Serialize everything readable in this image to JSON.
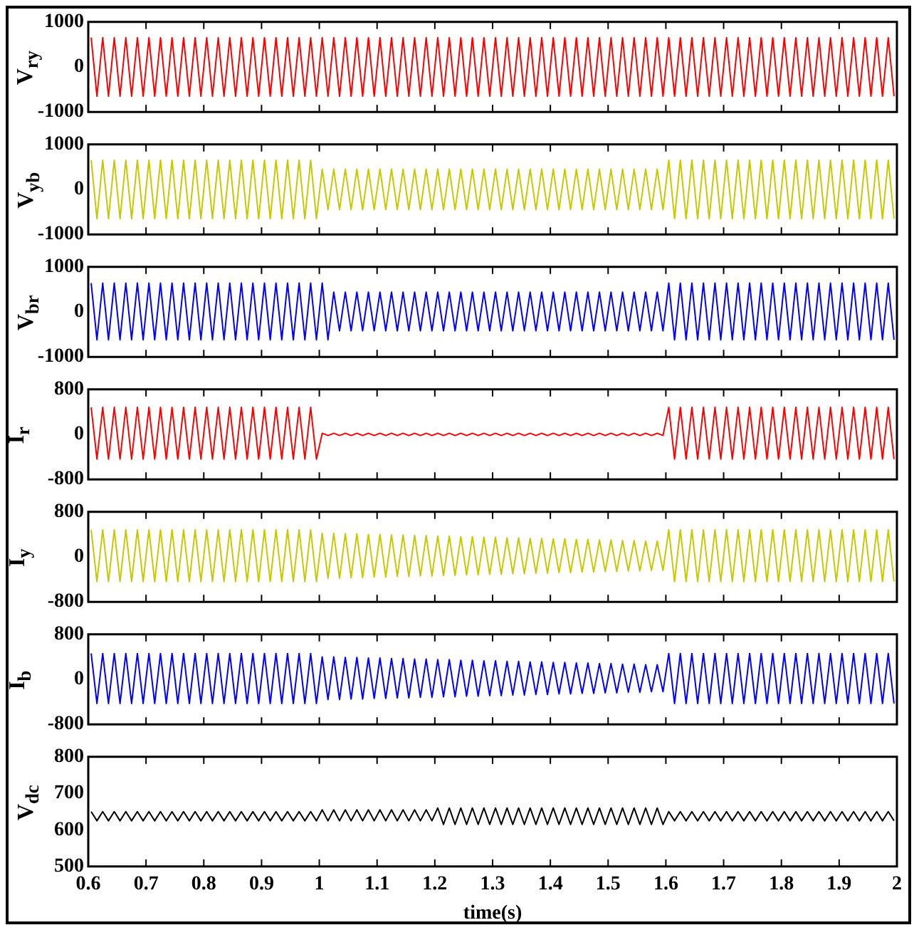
{
  "chart_data": [
    {
      "type": "line",
      "ylabel": "V$_{ry}$",
      "xlim": [
        0.6,
        2
      ],
      "ylim": [
        -1000,
        1000
      ],
      "yticks": [
        -1000,
        0,
        1000
      ],
      "xticks": [
        0.6,
        0.7,
        0.8,
        0.9,
        1,
        1.1,
        1.2,
        1.3,
        1.4,
        1.5,
        1.6,
        1.7,
        1.8,
        1.9,
        2
      ],
      "tick_labels": "y",
      "grid": false,
      "x": [
        0.605,
        0.615,
        0.625,
        0.635,
        0.645,
        0.655,
        0.665,
        0.675,
        0.685,
        0.695,
        0.705,
        0.715,
        0.725,
        0.735,
        0.745,
        0.755,
        0.765,
        0.775,
        0.785,
        0.795,
        0.805,
        0.815,
        0.825,
        0.835,
        0.845,
        0.855,
        0.865,
        0.875,
        0.885,
        0.895,
        0.905,
        0.915,
        0.925,
        0.935,
        0.945,
        0.955,
        0.965,
        0.975,
        0.985,
        0.995,
        1.005,
        1.015,
        1.025,
        1.035,
        1.045,
        1.055,
        1.065,
        1.075,
        1.085,
        1.095,
        1.105,
        1.115,
        1.125,
        1.135,
        1.145,
        1.155,
        1.165,
        1.175,
        1.185,
        1.195,
        1.205,
        1.215,
        1.225,
        1.235,
        1.245,
        1.255,
        1.265,
        1.275,
        1.285,
        1.295,
        1.305,
        1.315,
        1.325,
        1.335,
        1.345,
        1.355,
        1.365,
        1.375,
        1.385,
        1.395,
        1.405,
        1.415,
        1.425,
        1.435,
        1.445,
        1.455,
        1.465,
        1.475,
        1.485,
        1.495,
        1.505,
        1.515,
        1.525,
        1.535,
        1.545,
        1.555,
        1.565,
        1.575,
        1.585,
        1.595,
        1.605,
        1.615,
        1.625,
        1.635,
        1.645,
        1.655,
        1.665,
        1.675,
        1.685,
        1.695,
        1.705,
        1.715,
        1.725,
        1.735,
        1.745,
        1.755,
        1.765,
        1.775,
        1.785,
        1.795,
        1.805,
        1.815,
        1.825,
        1.835,
        1.845,
        1.855,
        1.865,
        1.875,
        1.885,
        1.895,
        1.905,
        1.915,
        1.925,
        1.935,
        1.945,
        1.955,
        1.965,
        1.975,
        1.985,
        1.995
      ],
      "series": [
        {
          "color": "#ff0000",
          "values": [
            650,
            -650,
            650,
            -650,
            650,
            -650,
            650,
            -650,
            650,
            -650,
            650,
            -650,
            650,
            -650,
            650,
            -650,
            650,
            -650,
            650,
            -650,
            650,
            -650,
            650,
            -650,
            650,
            -650,
            650,
            -650,
            650,
            -650,
            650,
            -650,
            650,
            -650,
            650,
            -650,
            650,
            -650,
            650,
            -650,
            650,
            -650,
            650,
            -650,
            650,
            -650,
            650,
            -650,
            650,
            -650,
            650,
            -650,
            650,
            -650,
            650,
            -650,
            650,
            -650,
            650,
            -650,
            650,
            -650,
            650,
            -650,
            650,
            -650,
            650,
            -650,
            650,
            -650,
            650,
            -650,
            650,
            -650,
            650,
            -650,
            650,
            -650,
            650,
            -650,
            650,
            -650,
            650,
            -650,
            650,
            -650,
            650,
            -650,
            650,
            -650,
            650,
            -650,
            650,
            -650,
            650,
            -650,
            650,
            -650,
            650,
            -650,
            650,
            -650,
            650,
            -650,
            650,
            -650,
            650,
            -650,
            650,
            -650,
            650,
            -650,
            650,
            -650,
            650,
            -650,
            650,
            -650,
            650,
            -650,
            650,
            -650,
            650,
            -650,
            650,
            -650,
            650,
            -650,
            650,
            -650,
            650,
            -650,
            650,
            -650,
            650,
            -650,
            650,
            -650,
            650,
            -650
          ]
        }
      ]
    },
    {
      "type": "line",
      "ylabel": "V$_{yb}$",
      "xlim": [
        0.6,
        2
      ],
      "ylim": [
        -1000,
        1000
      ],
      "yticks": [
        -1000,
        0,
        1000
      ],
      "xticks": [
        0.6,
        0.7,
        0.8,
        0.9,
        1,
        1.1,
        1.2,
        1.3,
        1.4,
        1.5,
        1.6,
        1.7,
        1.8,
        1.9,
        2
      ],
      "tick_labels": "y",
      "grid": false,
      "x": [
        0.605,
        0.615,
        0.625,
        0.635,
        0.645,
        0.655,
        0.665,
        0.675,
        0.685,
        0.695,
        0.705,
        0.715,
        0.725,
        0.735,
        0.745,
        0.755,
        0.765,
        0.775,
        0.785,
        0.795,
        0.805,
        0.815,
        0.825,
        0.835,
        0.845,
        0.855,
        0.865,
        0.875,
        0.885,
        0.895,
        0.905,
        0.915,
        0.925,
        0.935,
        0.945,
        0.955,
        0.965,
        0.975,
        0.985,
        0.995,
        1.005,
        1.015,
        1.025,
        1.035,
        1.045,
        1.055,
        1.065,
        1.075,
        1.085,
        1.095,
        1.105,
        1.115,
        1.125,
        1.135,
        1.145,
        1.155,
        1.165,
        1.175,
        1.185,
        1.195,
        1.205,
        1.215,
        1.225,
        1.235,
        1.245,
        1.255,
        1.265,
        1.275,
        1.285,
        1.295,
        1.305,
        1.315,
        1.325,
        1.335,
        1.345,
        1.355,
        1.365,
        1.375,
        1.385,
        1.395,
        1.405,
        1.415,
        1.425,
        1.435,
        1.445,
        1.455,
        1.465,
        1.475,
        1.485,
        1.495,
        1.505,
        1.515,
        1.525,
        1.535,
        1.545,
        1.555,
        1.565,
        1.575,
        1.585,
        1.595,
        1.605,
        1.615,
        1.625,
        1.635,
        1.645,
        1.655,
        1.665,
        1.675,
        1.685,
        1.695,
        1.705,
        1.715,
        1.725,
        1.735,
        1.745,
        1.755,
        1.765,
        1.775,
        1.785,
        1.795,
        1.805,
        1.815,
        1.825,
        1.835,
        1.845,
        1.855,
        1.865,
        1.875,
        1.885,
        1.895,
        1.905,
        1.915,
        1.925,
        1.935,
        1.945,
        1.955,
        1.965,
        1.975,
        1.985,
        1.995
      ],
      "series": [
        {
          "color": "#c8c800",
          "values": [
            650,
            -650,
            650,
            -650,
            650,
            -650,
            650,
            -650,
            650,
            -650,
            650,
            -650,
            650,
            -650,
            650,
            -650,
            650,
            -650,
            650,
            -650,
            650,
            -650,
            650,
            -650,
            650,
            -650,
            650,
            -650,
            650,
            -650,
            650,
            -650,
            650,
            -650,
            650,
            -650,
            650,
            -650,
            650,
            -650,
            450,
            -450,
            450,
            -450,
            450,
            -450,
            450,
            -450,
            450,
            -450,
            450,
            -450,
            450,
            -450,
            450,
            -450,
            450,
            -450,
            450,
            -450,
            450,
            -450,
            450,
            -450,
            450,
            -450,
            450,
            -450,
            450,
            -450,
            450,
            -450,
            450,
            -450,
            450,
            -450,
            450,
            -450,
            450,
            -450,
            450,
            -450,
            450,
            -450,
            450,
            -450,
            450,
            -450,
            450,
            -450,
            450,
            -450,
            450,
            -450,
            450,
            -450,
            450,
            -450,
            450,
            -450,
            650,
            -650,
            650,
            -650,
            650,
            -650,
            650,
            -650,
            650,
            -650,
            650,
            -650,
            650,
            -650,
            650,
            -650,
            650,
            -650,
            650,
            -650,
            650,
            -650,
            650,
            -650,
            650,
            -650,
            650,
            -650,
            650,
            -650,
            650,
            -650,
            650,
            -650,
            650,
            -650,
            650,
            -650,
            650,
            -650
          ]
        }
      ]
    },
    {
      "type": "line",
      "ylabel": "V$_{br}$",
      "xlim": [
        0.6,
        2
      ],
      "ylim": [
        -1000,
        1000
      ],
      "yticks": [
        -1000,
        0,
        1000
      ],
      "xticks": [
        0.6,
        0.7,
        0.8,
        0.9,
        1,
        1.1,
        1.2,
        1.3,
        1.4,
        1.5,
        1.6,
        1.7,
        1.8,
        1.9,
        2
      ],
      "tick_labels": "y",
      "grid": false,
      "x": [
        0.605,
        0.615,
        0.625,
        0.635,
        0.645,
        0.655,
        0.665,
        0.675,
        0.685,
        0.695,
        0.705,
        0.715,
        0.725,
        0.735,
        0.745,
        0.755,
        0.765,
        0.775,
        0.785,
        0.795,
        0.805,
        0.815,
        0.825,
        0.835,
        0.845,
        0.855,
        0.865,
        0.875,
        0.885,
        0.895,
        0.905,
        0.915,
        0.925,
        0.935,
        0.945,
        0.955,
        0.965,
        0.975,
        0.985,
        0.995,
        1.005,
        1.015,
        1.025,
        1.035,
        1.045,
        1.055,
        1.065,
        1.075,
        1.085,
        1.095,
        1.105,
        1.115,
        1.125,
        1.135,
        1.145,
        1.155,
        1.165,
        1.175,
        1.185,
        1.195,
        1.205,
        1.215,
        1.225,
        1.235,
        1.245,
        1.255,
        1.265,
        1.275,
        1.285,
        1.295,
        1.305,
        1.315,
        1.325,
        1.335,
        1.345,
        1.355,
        1.365,
        1.375,
        1.385,
        1.395,
        1.405,
        1.415,
        1.425,
        1.435,
        1.445,
        1.455,
        1.465,
        1.475,
        1.485,
        1.495,
        1.505,
        1.515,
        1.525,
        1.535,
        1.545,
        1.555,
        1.565,
        1.575,
        1.585,
        1.595,
        1.605,
        1.615,
        1.625,
        1.635,
        1.645,
        1.655,
        1.665,
        1.675,
        1.685,
        1.695,
        1.705,
        1.715,
        1.725,
        1.735,
        1.745,
        1.755,
        1.765,
        1.775,
        1.785,
        1.795,
        1.805,
        1.815,
        1.825,
        1.835,
        1.845,
        1.855,
        1.865,
        1.875,
        1.885,
        1.895,
        1.905,
        1.915,
        1.925,
        1.935,
        1.945,
        1.955,
        1.965,
        1.975,
        1.985,
        1.995
      ],
      "series": [
        {
          "color": "#0000ff",
          "values": [
            640,
            -620,
            640,
            -620,
            640,
            -620,
            640,
            -620,
            640,
            -620,
            640,
            -620,
            640,
            -620,
            640,
            -620,
            640,
            -620,
            640,
            -620,
            640,
            -620,
            640,
            -620,
            640,
            -620,
            640,
            -620,
            640,
            -620,
            640,
            -620,
            640,
            -620,
            640,
            -620,
            640,
            -620,
            640,
            -620,
            640,
            -620,
            440,
            -420,
            440,
            -420,
            440,
            -420,
            440,
            -420,
            440,
            -420,
            440,
            -420,
            440,
            -420,
            440,
            -420,
            440,
            -420,
            440,
            -420,
            440,
            -420,
            440,
            -420,
            440,
            -420,
            440,
            -420,
            440,
            -420,
            440,
            -420,
            440,
            -420,
            440,
            -420,
            440,
            -420,
            440,
            -420,
            440,
            -420,
            440,
            -420,
            440,
            -420,
            440,
            -420,
            440,
            -420,
            440,
            -420,
            440,
            -420,
            440,
            -420,
            440,
            -420,
            640,
            -620,
            640,
            -620,
            640,
            -620,
            640,
            -620,
            640,
            -620,
            640,
            -620,
            640,
            -620,
            640,
            -620,
            640,
            -620,
            640,
            -620,
            640,
            -620,
            640,
            -620,
            640,
            -620,
            640,
            -620,
            640,
            -620,
            640,
            -620,
            640,
            -620,
            640,
            -620,
            640,
            -620,
            640,
            -620
          ]
        }
      ]
    },
    {
      "type": "line",
      "ylabel": "I$_{r}$",
      "xlim": [
        0.6,
        2
      ],
      "ylim": [
        -800,
        800
      ],
      "yticks": [
        -800,
        0,
        800
      ],
      "xticks": [
        0.6,
        0.7,
        0.8,
        0.9,
        1,
        1.1,
        1.2,
        1.3,
        1.4,
        1.5,
        1.6,
        1.7,
        1.8,
        1.9,
        2
      ],
      "tick_labels": "y",
      "grid": false,
      "x": [
        0.605,
        0.615,
        0.625,
        0.635,
        0.645,
        0.655,
        0.665,
        0.675,
        0.685,
        0.695,
        0.705,
        0.715,
        0.725,
        0.735,
        0.745,
        0.755,
        0.765,
        0.775,
        0.785,
        0.795,
        0.805,
        0.815,
        0.825,
        0.835,
        0.845,
        0.855,
        0.865,
        0.875,
        0.885,
        0.895,
        0.905,
        0.915,
        0.925,
        0.935,
        0.945,
        0.955,
        0.965,
        0.975,
        0.985,
        0.995,
        1.005,
        1.015,
        1.025,
        1.035,
        1.045,
        1.055,
        1.065,
        1.075,
        1.085,
        1.095,
        1.105,
        1.115,
        1.125,
        1.135,
        1.145,
        1.155,
        1.165,
        1.175,
        1.185,
        1.195,
        1.205,
        1.215,
        1.225,
        1.235,
        1.245,
        1.255,
        1.265,
        1.275,
        1.285,
        1.295,
        1.305,
        1.315,
        1.325,
        1.335,
        1.345,
        1.355,
        1.365,
        1.375,
        1.385,
        1.395,
        1.405,
        1.415,
        1.425,
        1.435,
        1.445,
        1.455,
        1.465,
        1.475,
        1.485,
        1.495,
        1.505,
        1.515,
        1.525,
        1.535,
        1.545,
        1.555,
        1.565,
        1.575,
        1.585,
        1.595,
        1.605,
        1.615,
        1.625,
        1.635,
        1.645,
        1.655,
        1.665,
        1.675,
        1.685,
        1.695,
        1.705,
        1.715,
        1.725,
        1.735,
        1.745,
        1.755,
        1.765,
        1.775,
        1.785,
        1.795,
        1.805,
        1.815,
        1.825,
        1.835,
        1.845,
        1.855,
        1.865,
        1.875,
        1.885,
        1.895,
        1.905,
        1.915,
        1.925,
        1.935,
        1.945,
        1.955,
        1.965,
        1.975,
        1.985,
        1.995
      ],
      "series": [
        {
          "color": "#ff0000",
          "values": [
            480,
            -440,
            480,
            -440,
            480,
            -440,
            480,
            -440,
            480,
            -440,
            480,
            -440,
            480,
            -440,
            480,
            -440,
            480,
            -440,
            480,
            -440,
            480,
            -440,
            480,
            -440,
            480,
            -440,
            480,
            -440,
            480,
            -440,
            480,
            -440,
            480,
            -440,
            480,
            -440,
            480,
            -440,
            480,
            -440,
            20,
            -20,
            20,
            -20,
            20,
            -20,
            20,
            -20,
            20,
            -20,
            20,
            -20,
            20,
            -20,
            20,
            -20,
            20,
            -20,
            20,
            -20,
            20,
            -20,
            20,
            -20,
            20,
            -20,
            20,
            -20,
            20,
            -20,
            20,
            -20,
            20,
            -20,
            20,
            -20,
            20,
            -20,
            20,
            -20,
            20,
            -20,
            20,
            -20,
            20,
            -20,
            20,
            -20,
            20,
            -20,
            20,
            -20,
            20,
            -20,
            20,
            -20,
            20,
            -20,
            20,
            -20,
            480,
            -440,
            480,
            -440,
            480,
            -440,
            480,
            -440,
            480,
            -440,
            480,
            -440,
            480,
            -440,
            480,
            -440,
            480,
            -440,
            480,
            -440,
            480,
            -440,
            480,
            -440,
            480,
            -440,
            480,
            -440,
            480,
            -440,
            480,
            -440,
            480,
            -440,
            480,
            -440,
            480,
            -440,
            480,
            -440
          ]
        }
      ]
    },
    {
      "type": "line",
      "ylabel": "I$_{y}$",
      "xlim": [
        0.6,
        2
      ],
      "ylim": [
        -800,
        800
      ],
      "yticks": [
        -800,
        0,
        800
      ],
      "xticks": [
        0.6,
        0.7,
        0.8,
        0.9,
        1,
        1.1,
        1.2,
        1.3,
        1.4,
        1.5,
        1.6,
        1.7,
        1.8,
        1.9,
        2
      ],
      "tick_labels": "y",
      "grid": false,
      "x": [
        0.605,
        0.615,
        0.625,
        0.635,
        0.645,
        0.655,
        0.665,
        0.675,
        0.685,
        0.695,
        0.705,
        0.715,
        0.725,
        0.735,
        0.745,
        0.755,
        0.765,
        0.775,
        0.785,
        0.795,
        0.805,
        0.815,
        0.825,
        0.835,
        0.845,
        0.855,
        0.865,
        0.875,
        0.885,
        0.895,
        0.905,
        0.915,
        0.925,
        0.935,
        0.945,
        0.955,
        0.965,
        0.975,
        0.985,
        0.995,
        1.005,
        1.015,
        1.025,
        1.035,
        1.045,
        1.055,
        1.065,
        1.075,
        1.085,
        1.095,
        1.105,
        1.115,
        1.125,
        1.135,
        1.145,
        1.155,
        1.165,
        1.175,
        1.185,
        1.195,
        1.205,
        1.215,
        1.225,
        1.235,
        1.245,
        1.255,
        1.265,
        1.275,
        1.285,
        1.295,
        1.305,
        1.315,
        1.325,
        1.335,
        1.345,
        1.355,
        1.365,
        1.375,
        1.385,
        1.395,
        1.405,
        1.415,
        1.425,
        1.435,
        1.445,
        1.455,
        1.465,
        1.475,
        1.485,
        1.495,
        1.505,
        1.515,
        1.525,
        1.535,
        1.545,
        1.555,
        1.565,
        1.575,
        1.585,
        1.595,
        1.605,
        1.615,
        1.625,
        1.635,
        1.645,
        1.655,
        1.665,
        1.675,
        1.685,
        1.695,
        1.705,
        1.715,
        1.725,
        1.735,
        1.745,
        1.755,
        1.765,
        1.775,
        1.785,
        1.795,
        1.805,
        1.815,
        1.825,
        1.835,
        1.845,
        1.855,
        1.865,
        1.875,
        1.885,
        1.895,
        1.905,
        1.915,
        1.925,
        1.935,
        1.945,
        1.955,
        1.965,
        1.975,
        1.985,
        1.995
      ],
      "series": [
        {
          "color": "#c8c800",
          "values": [
            480,
            -440,
            480,
            -440,
            480,
            -440,
            480,
            -440,
            480,
            -440,
            480,
            -440,
            480,
            -440,
            480,
            -440,
            480,
            -440,
            480,
            -440,
            480,
            -440,
            480,
            -440,
            480,
            -440,
            480,
            -440,
            480,
            -440,
            480,
            -440,
            480,
            -440,
            480,
            -440,
            480,
            -440,
            480,
            -440,
            420,
            -380,
            420,
            -380,
            410,
            -370,
            410,
            -370,
            400,
            -360,
            400,
            -360,
            390,
            -350,
            390,
            -350,
            380,
            -340,
            380,
            -340,
            370,
            -330,
            370,
            -330,
            360,
            -320,
            360,
            -320,
            350,
            -310,
            350,
            -310,
            340,
            -300,
            340,
            -300,
            330,
            -290,
            330,
            -290,
            320,
            -280,
            320,
            -280,
            310,
            -270,
            310,
            -270,
            300,
            -260,
            300,
            -260,
            290,
            -250,
            290,
            -250,
            280,
            -240,
            280,
            -240,
            480,
            -440,
            480,
            -440,
            480,
            -440,
            480,
            -440,
            480,
            -440,
            480,
            -440,
            480,
            -440,
            480,
            -440,
            480,
            -440,
            480,
            -440,
            480,
            -440,
            480,
            -440,
            480,
            -440,
            480,
            -440,
            480,
            -440,
            480,
            -440,
            480,
            -440,
            480,
            -440,
            480,
            -440,
            480,
            -440
          ]
        }
      ]
    },
    {
      "type": "line",
      "ylabel": "I$_{b}$",
      "xlim": [
        0.6,
        2
      ],
      "ylim": [
        -800,
        800
      ],
      "yticks": [
        -800,
        0,
        800
      ],
      "xticks": [
        0.6,
        0.7,
        0.8,
        0.9,
        1,
        1.1,
        1.2,
        1.3,
        1.4,
        1.5,
        1.6,
        1.7,
        1.8,
        1.9,
        2
      ],
      "tick_labels": "y",
      "grid": false,
      "x": [
        0.605,
        0.615,
        0.625,
        0.635,
        0.645,
        0.655,
        0.665,
        0.675,
        0.685,
        0.695,
        0.705,
        0.715,
        0.725,
        0.735,
        0.745,
        0.755,
        0.765,
        0.775,
        0.785,
        0.795,
        0.805,
        0.815,
        0.825,
        0.835,
        0.845,
        0.855,
        0.865,
        0.875,
        0.885,
        0.895,
        0.905,
        0.915,
        0.925,
        0.935,
        0.945,
        0.955,
        0.965,
        0.975,
        0.985,
        0.995,
        1.005,
        1.015,
        1.025,
        1.035,
        1.045,
        1.055,
        1.065,
        1.075,
        1.085,
        1.095,
        1.105,
        1.115,
        1.125,
        1.135,
        1.145,
        1.155,
        1.165,
        1.175,
        1.185,
        1.195,
        1.205,
        1.215,
        1.225,
        1.235,
        1.245,
        1.255,
        1.265,
        1.275,
        1.285,
        1.295,
        1.305,
        1.315,
        1.325,
        1.335,
        1.345,
        1.355,
        1.365,
        1.375,
        1.385,
        1.395,
        1.405,
        1.415,
        1.425,
        1.435,
        1.445,
        1.455,
        1.465,
        1.475,
        1.485,
        1.495,
        1.505,
        1.515,
        1.525,
        1.535,
        1.545,
        1.555,
        1.565,
        1.575,
        1.585,
        1.595,
        1.605,
        1.615,
        1.625,
        1.635,
        1.645,
        1.655,
        1.665,
        1.675,
        1.685,
        1.695,
        1.705,
        1.715,
        1.725,
        1.735,
        1.745,
        1.755,
        1.765,
        1.775,
        1.785,
        1.795,
        1.805,
        1.815,
        1.825,
        1.835,
        1.845,
        1.855,
        1.865,
        1.875,
        1.885,
        1.895,
        1.905,
        1.915,
        1.925,
        1.935,
        1.945,
        1.955,
        1.965,
        1.975,
        1.985,
        1.995
      ],
      "series": [
        {
          "color": "#0000ff",
          "values": [
            460,
            -430,
            460,
            -430,
            460,
            -430,
            460,
            -430,
            460,
            -430,
            460,
            -430,
            460,
            -430,
            460,
            -430,
            460,
            -430,
            460,
            -430,
            460,
            -430,
            460,
            -430,
            460,
            -430,
            460,
            -430,
            460,
            -430,
            460,
            -430,
            460,
            -430,
            460,
            -430,
            460,
            -430,
            460,
            -430,
            400,
            -360,
            400,
            -360,
            390,
            -350,
            390,
            -350,
            380,
            -340,
            380,
            -340,
            370,
            -330,
            370,
            -330,
            360,
            -320,
            360,
            -320,
            350,
            -310,
            350,
            -310,
            340,
            -300,
            340,
            -300,
            330,
            -290,
            330,
            -290,
            320,
            -280,
            320,
            -280,
            310,
            -270,
            310,
            -270,
            300,
            -260,
            300,
            -260,
            290,
            -250,
            290,
            -250,
            280,
            -240,
            280,
            -240,
            270,
            -230,
            270,
            -230,
            260,
            -220,
            260,
            -220,
            460,
            -430,
            460,
            -430,
            460,
            -430,
            460,
            -430,
            460,
            -430,
            460,
            -430,
            460,
            -430,
            460,
            -430,
            460,
            -430,
            460,
            -430,
            460,
            -430,
            460,
            -430,
            460,
            -430,
            460,
            -430,
            460,
            -430,
            460,
            -430,
            460,
            -430,
            460,
            -430,
            460,
            -430,
            460,
            -430
          ]
        }
      ]
    },
    {
      "type": "line",
      "ylabel": "V$_{dc}$",
      "xlabel": "time(s)",
      "xlim": [
        0.6,
        2
      ],
      "ylim": [
        500,
        800
      ],
      "yticks": [
        500,
        600,
        700,
        800
      ],
      "xticks": [
        0.6,
        0.7,
        0.8,
        0.9,
        1,
        1.1,
        1.2,
        1.3,
        1.4,
        1.5,
        1.6,
        1.7,
        1.8,
        1.9,
        2
      ],
      "grid": false,
      "x": [
        0.605,
        0.615,
        0.625,
        0.635,
        0.645,
        0.655,
        0.665,
        0.675,
        0.685,
        0.695,
        0.705,
        0.715,
        0.725,
        0.735,
        0.745,
        0.755,
        0.765,
        0.775,
        0.785,
        0.795,
        0.805,
        0.815,
        0.825,
        0.835,
        0.845,
        0.855,
        0.865,
        0.875,
        0.885,
        0.895,
        0.905,
        0.915,
        0.925,
        0.935,
        0.945,
        0.955,
        0.965,
        0.975,
        0.985,
        0.995,
        1.005,
        1.015,
        1.025,
        1.035,
        1.045,
        1.055,
        1.065,
        1.075,
        1.085,
        1.095,
        1.105,
        1.115,
        1.125,
        1.135,
        1.145,
        1.155,
        1.165,
        1.175,
        1.185,
        1.195,
        1.205,
        1.215,
        1.225,
        1.235,
        1.245,
        1.255,
        1.265,
        1.275,
        1.285,
        1.295,
        1.305,
        1.315,
        1.325,
        1.335,
        1.345,
        1.355,
        1.365,
        1.375,
        1.385,
        1.395,
        1.405,
        1.415,
        1.425,
        1.435,
        1.445,
        1.455,
        1.465,
        1.475,
        1.485,
        1.495,
        1.505,
        1.515,
        1.525,
        1.535,
        1.545,
        1.555,
        1.565,
        1.575,
        1.585,
        1.595,
        1.605,
        1.615,
        1.625,
        1.635,
        1.645,
        1.655,
        1.665,
        1.675,
        1.685,
        1.695,
        1.705,
        1.715,
        1.725,
        1.735,
        1.745,
        1.755,
        1.765,
        1.775,
        1.785,
        1.795,
        1.805,
        1.815,
        1.825,
        1.835,
        1.845,
        1.855,
        1.865,
        1.875,
        1.885,
        1.895,
        1.905,
        1.915,
        1.925,
        1.935,
        1.945,
        1.955,
        1.965,
        1.975,
        1.985,
        1.995
      ],
      "series": [
        {
          "color": "#000000",
          "values": [
            650,
            625,
            650,
            625,
            650,
            625,
            650,
            625,
            650,
            625,
            650,
            625,
            650,
            625,
            650,
            625,
            650,
            625,
            650,
            625,
            650,
            625,
            650,
            625,
            650,
            625,
            650,
            625,
            650,
            625,
            650,
            625,
            650,
            625,
            650,
            625,
            650,
            625,
            650,
            625,
            655,
            625,
            655,
            625,
            655,
            625,
            655,
            625,
            655,
            625,
            655,
            625,
            655,
            625,
            655,
            625,
            655,
            625,
            655,
            625,
            660,
            615,
            660,
            615,
            660,
            615,
            660,
            615,
            660,
            615,
            660,
            615,
            660,
            615,
            660,
            615,
            660,
            615,
            660,
            615,
            660,
            615,
            660,
            615,
            660,
            615,
            660,
            615,
            660,
            615,
            660,
            615,
            660,
            615,
            660,
            615,
            660,
            615,
            660,
            615,
            650,
            625,
            650,
            625,
            650,
            625,
            650,
            625,
            650,
            625,
            650,
            625,
            650,
            625,
            650,
            625,
            650,
            625,
            650,
            625,
            650,
            625,
            650,
            625,
            650,
            625,
            650,
            625,
            650,
            625,
            650,
            625,
            650,
            625,
            650,
            625,
            650,
            625,
            650,
            625
          ]
        }
      ]
    }
  ]
}
